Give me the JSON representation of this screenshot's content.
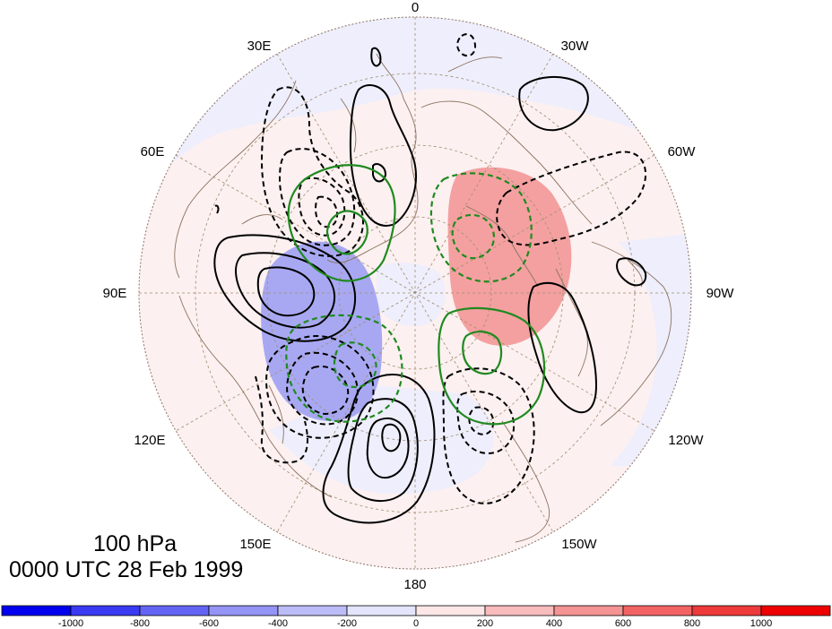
{
  "title": {
    "level": "100 hPa",
    "time": "0000 UTC 28 Feb 1999"
  },
  "map": {
    "projection": "north-polar-stereographic",
    "longitude_labels": [
      {
        "text": "0",
        "id": "lon-0"
      },
      {
        "text": "30W",
        "id": "lon-30w"
      },
      {
        "text": "60W",
        "id": "lon-60w"
      },
      {
        "text": "90W",
        "id": "lon-90w"
      },
      {
        "text": "120W",
        "id": "lon-120w"
      },
      {
        "text": "150W",
        "id": "lon-150w"
      },
      {
        "text": "180",
        "id": "lon-180"
      },
      {
        "text": "150E",
        "id": "lon-150e"
      },
      {
        "text": "120E",
        "id": "lon-120e"
      },
      {
        "text": "90E",
        "id": "lon-90e"
      },
      {
        "text": "60E",
        "id": "lon-60e"
      },
      {
        "text": "30E",
        "id": "lon-30e"
      }
    ],
    "colors": {
      "coast": "#8c7260",
      "grid": "#a08c6e",
      "negative_contour": "#000000",
      "positive_contour": "#000000",
      "green_contour": "#1f8a1f"
    }
  },
  "colorbar": {
    "labels": [
      "-1000",
      "-800",
      "-600",
      "-400",
      "-200",
      "0",
      "200",
      "400",
      "600",
      "800",
      "1000"
    ],
    "colors": [
      "#0000ee",
      "#3a3af2",
      "#6464f4",
      "#9494f6",
      "#bcbcf8",
      "#e4e4fc",
      "#fce6e6",
      "#f8bcbc",
      "#f49494",
      "#f26464",
      "#ee3a3a",
      "#ee0000"
    ]
  }
}
